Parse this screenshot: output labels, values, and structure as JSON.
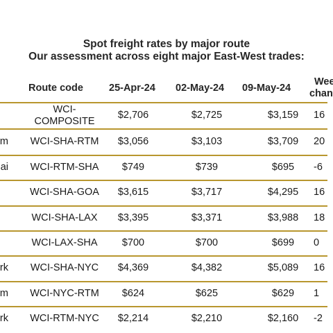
{
  "title": {
    "line1": "Spot freight rates by major route",
    "line2": "Our assessment across eight major East-West trades:"
  },
  "table": {
    "headers": {
      "route_code": "Route code",
      "date1": "25-Apr-24",
      "date2": "02-May-24",
      "date3": "09-May-24",
      "change_line1": "Wee",
      "change_line2": "chang"
    },
    "rows": [
      {
        "name": "",
        "code_line1": "WCI-",
        "code_line2": "COMPOSITE",
        "d1": "$2,706",
        "d2": "$2,725",
        "d3": "$3,159",
        "chg": "16"
      },
      {
        "name": "m",
        "code_line1": "WCI-SHA-RTM",
        "code_line2": "",
        "d1": "$3,056",
        "d2": "$3,103",
        "d3": "$3,709",
        "chg": "20"
      },
      {
        "name": "ai",
        "code_line1": "WCI-RTM-SHA",
        "code_line2": "",
        "d1": "$749",
        "d2": "$739",
        "d3": "$695",
        "chg": "-6"
      },
      {
        "name": "",
        "code_line1": "WCI-SHA-GOA",
        "code_line2": "",
        "d1": "$3,615",
        "d2": "$3,717",
        "d3": "$4,295",
        "chg": "16"
      },
      {
        "name": "",
        "code_line1": "WCI-SHA-LAX",
        "code_line2": "",
        "d1": "$3,395",
        "d2": "$3,371",
        "d3": "$3,988",
        "chg": "18"
      },
      {
        "name": "",
        "code_line1": "WCI-LAX-SHA",
        "code_line2": "",
        "d1": "$700",
        "d2": "$700",
        "d3": "$699",
        "chg": "0"
      },
      {
        "name": "rk",
        "code_line1": "WCI-SHA-NYC",
        "code_line2": "",
        "d1": "$4,369",
        "d2": "$4,382",
        "d3": "$5,089",
        "chg": "16"
      },
      {
        "name": "m",
        "code_line1": "WCI-NYC-RTM",
        "code_line2": "",
        "d1": "$624",
        "d2": "$625",
        "d3": "$629",
        "chg": "1"
      },
      {
        "name": "rk",
        "code_line1": "WCI-RTM-NYC",
        "code_line2": "",
        "d1": "$2,214",
        "d2": "$2,210",
        "d3": "$2,160",
        "chg": "-2"
      }
    ],
    "line_color": "#b8962e"
  }
}
